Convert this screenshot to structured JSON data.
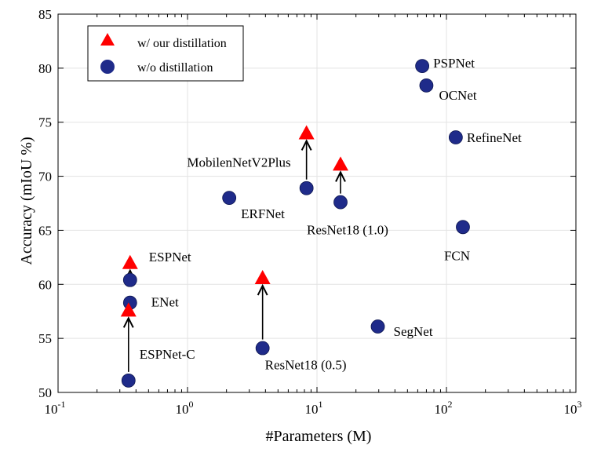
{
  "chart_data": {
    "type": "scatter",
    "title": "",
    "xlabel": "#Parameters (M)",
    "ylabel": "Accuracy (mIoU %)",
    "xscale": "log",
    "xlim": [
      0.1,
      1000
    ],
    "ylim": [
      50,
      85
    ],
    "grid": true,
    "legend_position": "top-left",
    "x_ticks": [
      {
        "value": 0.1,
        "base": "10",
        "exp": "-1"
      },
      {
        "value": 1,
        "base": "10",
        "exp": "0"
      },
      {
        "value": 10,
        "base": "10",
        "exp": "1"
      },
      {
        "value": 100,
        "base": "10",
        "exp": "2"
      },
      {
        "value": 1000,
        "base": "10",
        "exp": "3"
      }
    ],
    "y_ticks": [
      50,
      55,
      60,
      65,
      70,
      75,
      80,
      85
    ],
    "legend": {
      "distilled": "w/ our distillation",
      "baseline": "w/o distillation"
    },
    "colors": {
      "distilled": "#ff0000",
      "baseline": "#1f2b8a",
      "grid": "#e3e3e3"
    },
    "points": [
      {
        "label": "PSPNet",
        "params": 65,
        "miou": 80.2
      },
      {
        "label": "OCNet",
        "params": 70,
        "miou": 78.4
      },
      {
        "label": "RefineNet",
        "params": 118,
        "miou": 73.6
      },
      {
        "label": "FCN",
        "params": 134,
        "miou": 65.3
      },
      {
        "label": "SegNet",
        "params": 29.5,
        "miou": 56.1
      },
      {
        "label": "ERFNet",
        "params": 2.1,
        "miou": 68.0
      },
      {
        "label": "MobilenNetV2Plus",
        "params": 8.3,
        "miou": 68.9,
        "distilled": 74.0
      },
      {
        "label": "ResNet18 (1.0)",
        "params": 15.2,
        "miou": 67.6,
        "distilled": 71.1
      },
      {
        "label": "ResNet18 (0.5)",
        "params": 3.8,
        "miou": 54.1,
        "distilled": 60.6
      },
      {
        "label": "ESPNet",
        "params": 0.36,
        "miou": 60.4,
        "distilled": 62.0
      },
      {
        "label": "ENet",
        "params": 0.36,
        "miou": 58.3
      },
      {
        "label": "ESPNet-C",
        "params": 0.35,
        "miou": 51.1,
        "distilled": 57.6
      }
    ]
  }
}
